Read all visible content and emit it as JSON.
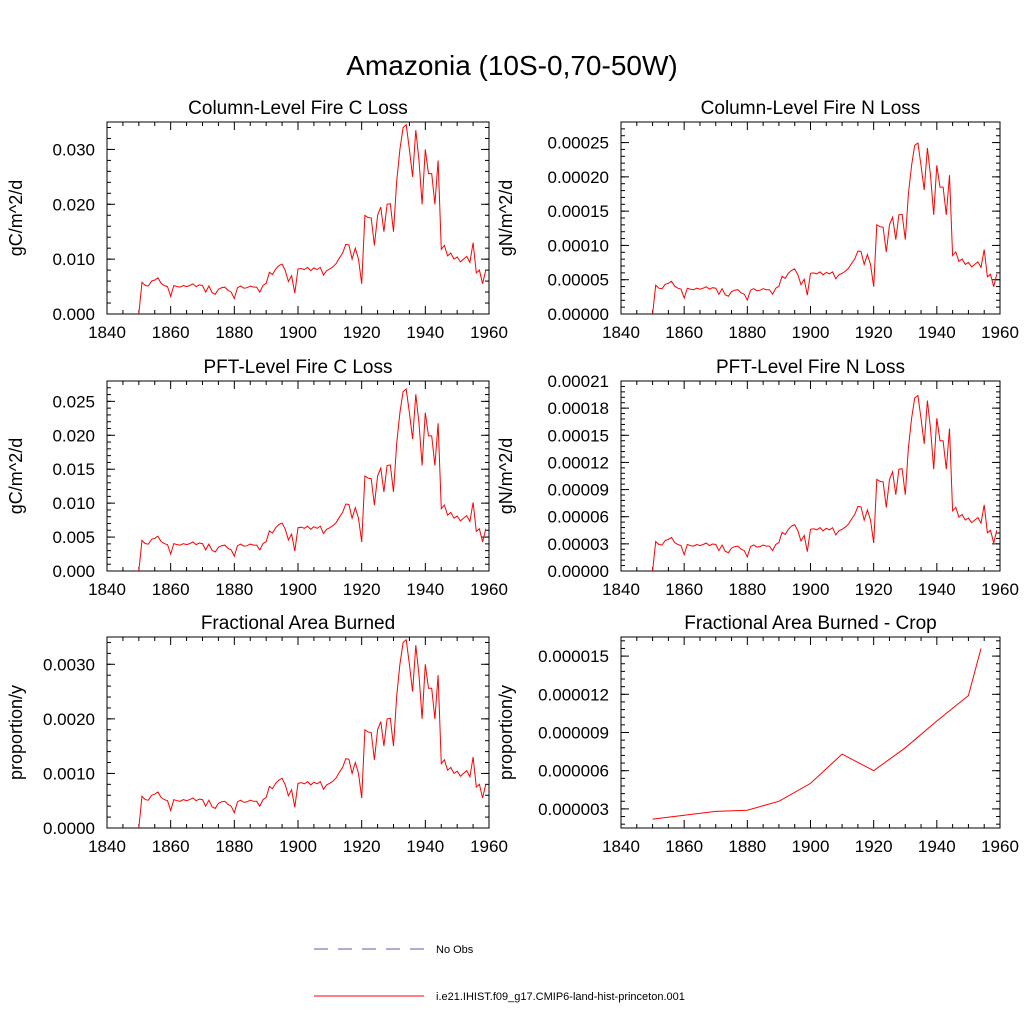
{
  "figure": {
    "title": "Amazonia (10S-0,70-50W)"
  },
  "legend": {
    "entries": [
      {
        "label": "No Obs",
        "style": "dashed",
        "color": "#5a5aa8"
      },
      {
        "label": "i.e21.IHIST.f09_g17.CMIP6-land-hist-princeton.001",
        "style": "solid",
        "color": "#ff0000"
      }
    ]
  },
  "chart_data": [
    {
      "type": "line",
      "title": "Column-Level Fire C Loss",
      "ylabel": "gC/m^2/d",
      "xlim": [
        1840,
        1960
      ],
      "xticks": [
        "1840",
        "1860",
        "1880",
        "1900",
        "1920",
        "1940",
        "1960"
      ],
      "ylim": [
        0,
        0.035
      ],
      "yticks": [
        0,
        0.01,
        0.02,
        0.03
      ],
      "yticklabels": [
        "0.000",
        "0.010",
        "0.020",
        "0.030"
      ],
      "series": [
        {
          "color": "#ff0000",
          "scale": 1.0
        }
      ]
    },
    {
      "type": "line",
      "title": "Column-Level Fire N Loss",
      "ylabel": "gN/m^2/d",
      "xlim": [
        1840,
        1960
      ],
      "xticks": [
        "1840",
        "1860",
        "1880",
        "1900",
        "1920",
        "1940",
        "1960"
      ],
      "ylim": [
        0,
        0.00028
      ],
      "yticks": [
        0,
        5e-05,
        0.0001,
        0.00015,
        0.0002,
        0.00025
      ],
      "yticklabels": [
        "0.00000",
        "0.00005",
        "0.00010",
        "0.00015",
        "0.00020",
        "0.00025"
      ],
      "series": [
        {
          "color": "#ff0000",
          "scale": 0.00723
        }
      ]
    },
    {
      "type": "line",
      "title": "PFT-Level Fire C Loss",
      "ylabel": "gC/m^2/d",
      "xlim": [
        1840,
        1960
      ],
      "xticks": [
        "1840",
        "1860",
        "1880",
        "1900",
        "1920",
        "1940",
        "1960"
      ],
      "ylim": [
        0,
        0.028
      ],
      "yticks": [
        0,
        0.005,
        0.01,
        0.015,
        0.02,
        0.025
      ],
      "yticklabels": [
        "0.000",
        "0.005",
        "0.010",
        "0.015",
        "0.020",
        "0.025"
      ],
      "series": [
        {
          "color": "#ff0000",
          "scale": 0.7775
        }
      ]
    },
    {
      "type": "line",
      "title": "PFT-Level Fire N Loss",
      "ylabel": "gN/m^2/d",
      "xlim": [
        1840,
        1960
      ],
      "xticks": [
        "1840",
        "1860",
        "1880",
        "1900",
        "1920",
        "1940",
        "1960"
      ],
      "ylim": [
        0,
        0.00021
      ],
      "yticks": [
        0,
        3e-05,
        6e-05,
        9e-05,
        0.00012,
        0.00015,
        0.00018,
        0.00021
      ],
      "yticklabels": [
        "0.00000",
        "0.00003",
        "0.00006",
        "0.00009",
        "0.00012",
        "0.00015",
        "0.00018",
        "0.00021"
      ],
      "series": [
        {
          "color": "#ff0000",
          "scale": 0.005625
        }
      ]
    },
    {
      "type": "line",
      "title": "Fractional Area Burned",
      "ylabel": "proportion/y",
      "xlim": [
        1840,
        1960
      ],
      "xticks": [
        "1840",
        "1860",
        "1880",
        "1900",
        "1920",
        "1940",
        "1960"
      ],
      "ylim": [
        0,
        0.0035
      ],
      "yticks": [
        0,
        0.001,
        0.002,
        0.003
      ],
      "yticklabels": [
        "0.0000",
        "0.0010",
        "0.0020",
        "0.0030"
      ],
      "series": [
        {
          "color": "#ff0000",
          "scale": 0.1
        }
      ]
    },
    {
      "type": "line",
      "title": "Fractional Area Burned - Crop",
      "ylabel": "proportion/y",
      "xlim": [
        1840,
        1960
      ],
      "xticks": [
        "1840",
        "1860",
        "1880",
        "1900",
        "1920",
        "1940",
        "1960"
      ],
      "ylim": [
        1.5e-06,
        1.65e-05
      ],
      "yticks": [
        3e-06,
        6e-06,
        9e-06,
        1.2e-05,
        1.5e-05
      ],
      "yticklabels": [
        "0.000003",
        "0.000006",
        "0.000009",
        "0.000012",
        "0.000015"
      ],
      "series": [
        {
          "color": "#ff0000",
          "x": [
            1850,
            1860,
            1870,
            1880,
            1890,
            1900,
            1910,
            1920,
            1930,
            1940,
            1950,
            1954
          ],
          "y": [
            2.2e-06,
            2.5e-06,
            2.8e-06,
            2.9e-06,
            3.6e-06,
            5e-06,
            7.3e-06,
            6e-06,
            7.8e-06,
            9.9e-06,
            1.19e-05,
            1.56e-05
          ]
        }
      ]
    }
  ],
  "base_series": {
    "x_start": 1850,
    "x_step": 1,
    "values": [
      0.0,
      0.0058,
      0.0052,
      0.0051,
      0.006,
      0.0062,
      0.0066,
      0.0056,
      0.0052,
      0.005,
      0.0032,
      0.0052,
      0.005,
      0.0049,
      0.0052,
      0.005,
      0.0052,
      0.0055,
      0.005,
      0.0053,
      0.0052,
      0.004,
      0.0051,
      0.0039,
      0.0036,
      0.0045,
      0.0048,
      0.0049,
      0.0043,
      0.004,
      0.0028,
      0.0048,
      0.0051,
      0.0047,
      0.0048,
      0.0051,
      0.0049,
      0.0049,
      0.004,
      0.0052,
      0.0056,
      0.0076,
      0.0072,
      0.0082,
      0.0088,
      0.0091,
      0.0079,
      0.0059,
      0.007,
      0.0038,
      0.0082,
      0.0083,
      0.0081,
      0.0085,
      0.0079,
      0.0084,
      0.0081,
      0.0085,
      0.0071,
      0.0079,
      0.0082,
      0.0086,
      0.0092,
      0.0102,
      0.0111,
      0.0127,
      0.0126,
      0.01,
      0.012,
      0.01,
      0.0055,
      0.018,
      0.0176,
      0.0175,
      0.0125,
      0.018,
      0.0195,
      0.015,
      0.02,
      0.0201,
      0.015,
      0.0242,
      0.03,
      0.034,
      0.0345,
      0.03,
      0.025,
      0.0335,
      0.028,
      0.02,
      0.03,
      0.0256,
      0.0256,
      0.02,
      0.028,
      0.0118,
      0.0125,
      0.0106,
      0.0111,
      0.01,
      0.0104,
      0.0095,
      0.01,
      0.0105,
      0.0094,
      0.013,
      0.0075,
      0.008,
      0.0055,
      0.008
    ]
  }
}
